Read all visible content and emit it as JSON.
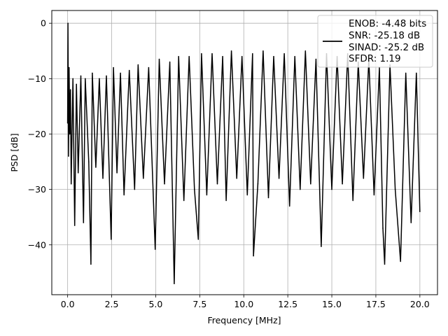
{
  "chart_data": {
    "type": "line",
    "xlabel": "Frequency [MHz]",
    "ylabel": "PSD [dB]",
    "xlim": [
      -0.9,
      21.0
    ],
    "ylim": [
      -49.0,
      2.3
    ],
    "x_ticks": [
      0.0,
      2.5,
      5.0,
      7.5,
      10.0,
      12.5,
      15.0,
      17.5,
      20.0
    ],
    "x_tick_labels": [
      "0.0",
      "2.5",
      "5.0",
      "7.5",
      "10.0",
      "12.5",
      "15.0",
      "17.5",
      "20.0"
    ],
    "y_ticks": [
      0,
      -10,
      -20,
      -30,
      -40
    ],
    "y_tick_labels": [
      "0",
      "−10",
      "−20",
      "−30",
      "−40"
    ],
    "grid": true,
    "legend_position": "upper-right",
    "legend": [
      "ENOB: -4.48 bits",
      "SNR: -25.18 dB",
      "SINAD: -25.2 dB",
      "SFDR: 1.19"
    ],
    "series": [
      {
        "color": "#000000",
        "x": [
          0.0,
          0.02,
          0.05,
          0.08,
          0.12,
          0.16,
          0.2,
          0.3,
          0.4,
          0.5,
          0.6,
          0.75,
          0.9,
          1.0,
          1.2,
          1.32,
          1.4,
          1.6,
          1.8,
          2.0,
          2.2,
          2.47,
          2.6,
          2.8,
          3.0,
          3.2,
          3.5,
          3.8,
          4.0,
          4.3,
          4.6,
          4.97,
          5.2,
          5.5,
          5.8,
          6.05,
          6.3,
          6.6,
          6.9,
          7.2,
          7.42,
          7.6,
          7.9,
          8.2,
          8.5,
          8.8,
          9.0,
          9.3,
          9.6,
          9.9,
          10.2,
          10.5,
          10.55,
          10.8,
          11.1,
          11.4,
          11.7,
          12.0,
          12.3,
          12.6,
          12.9,
          13.2,
          13.5,
          13.8,
          14.1,
          14.4,
          14.7,
          15.0,
          15.3,
          15.6,
          15.9,
          16.2,
          16.5,
          16.8,
          17.1,
          17.4,
          17.7,
          17.9,
          18.0,
          18.3,
          18.6,
          18.9,
          19.2,
          19.5,
          19.8,
          20.0
        ],
        "y": [
          -18.0,
          0.0,
          -24.0,
          -8.0,
          -20.0,
          -12.0,
          -29.0,
          -10.0,
          -36.5,
          -11.0,
          -27.0,
          -9.5,
          -36.0,
          -10.0,
          -25.0,
          -43.5,
          -9.0,
          -26.0,
          -10.0,
          -28.0,
          -9.5,
          -39.0,
          -8.0,
          -27.0,
          -9.0,
          -31.0,
          -8.5,
          -30.0,
          -7.5,
          -28.0,
          -8.0,
          -40.8,
          -6.5,
          -29.0,
          -7.0,
          -47.0,
          -6.0,
          -32.0,
          -6.0,
          -30.0,
          -39.0,
          -5.5,
          -31.0,
          -5.5,
          -29.0,
          -6.0,
          -32.0,
          -5.0,
          -28.0,
          -6.0,
          -31.0,
          -5.5,
          -42.0,
          -29.0,
          -5.0,
          -31.5,
          -6.0,
          -28.0,
          -5.5,
          -33.0,
          -6.0,
          -30.0,
          -5.0,
          -29.0,
          -6.5,
          -40.3,
          -5.5,
          -30.0,
          -6.0,
          -29.0,
          -5.5,
          -32.0,
          -7.0,
          -28.0,
          -6.5,
          -31.0,
          -8.0,
          -37.0,
          -43.5,
          -7.5,
          -30.0,
          -43.0,
          -9.0,
          -36.0,
          -9.0,
          -34.0
        ]
      }
    ]
  }
}
